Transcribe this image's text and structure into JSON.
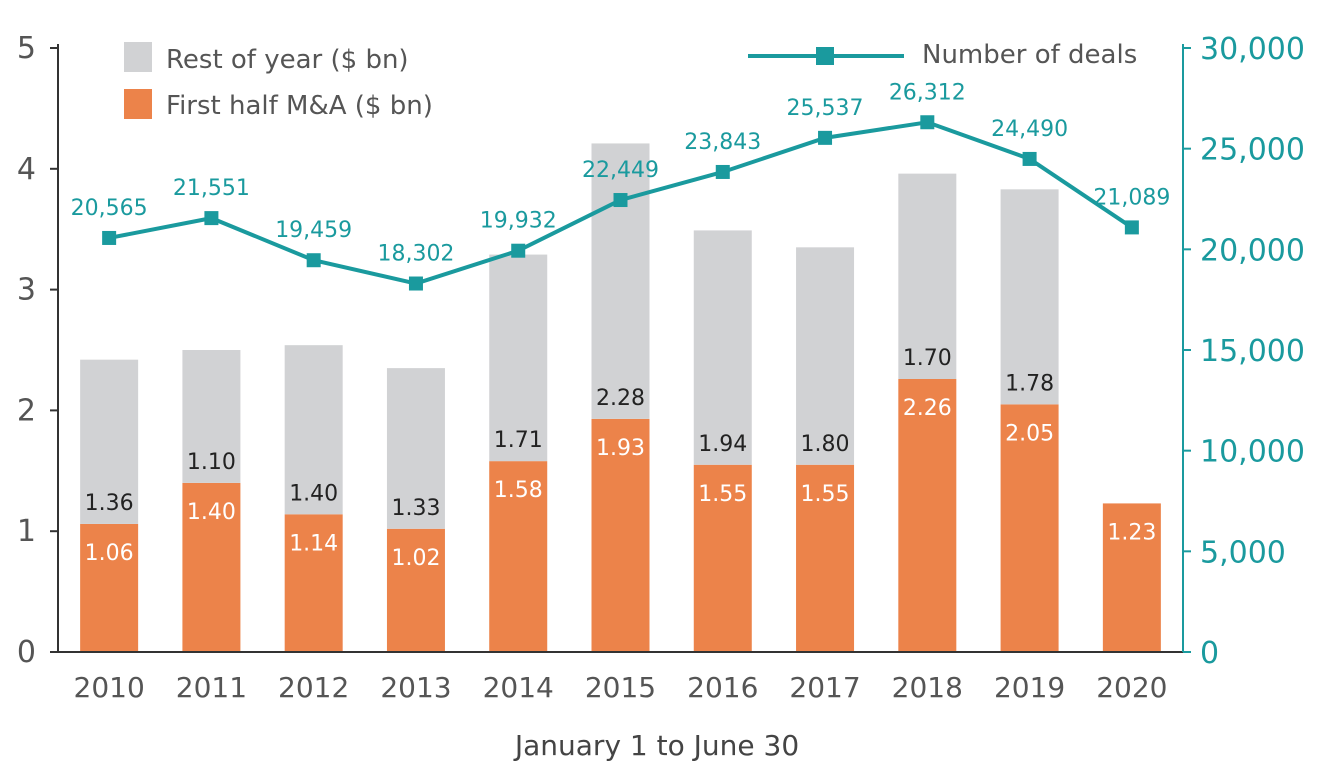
{
  "chart_data": {
    "type": "bar",
    "stacked": true,
    "categories": [
      "2010",
      "2011",
      "2012",
      "2013",
      "2014",
      "2015",
      "2016",
      "2017",
      "2018",
      "2019",
      "2020"
    ],
    "series": [
      {
        "name": "First half M&A ($ bn)",
        "color": "#ec834a",
        "values": [
          1.06,
          1.4,
          1.14,
          1.02,
          1.58,
          1.93,
          1.55,
          1.55,
          2.26,
          2.05,
          1.23
        ],
        "labels": [
          "1.06",
          "1.40",
          "1.14",
          "1.02",
          "1.58",
          "1.93",
          "1.55",
          "1.55",
          "2.26",
          "2.05",
          "1.23"
        ]
      },
      {
        "name": "Rest of year ($ bn)",
        "color": "#d1d2d4",
        "values": [
          1.36,
          1.1,
          1.4,
          1.33,
          1.71,
          2.28,
          1.94,
          1.8,
          1.7,
          1.78,
          null
        ],
        "labels": [
          "1.36",
          "1.10",
          "1.40",
          "1.33",
          "1.71",
          "2.28",
          "1.94",
          "1.80",
          "1.70",
          "1.78",
          ""
        ]
      }
    ],
    "line_series": {
      "name": "Number of deals",
      "color": "#1a9a9e",
      "axis": "right",
      "values": [
        20565,
        21551,
        19459,
        18302,
        19932,
        22449,
        23843,
        25537,
        26312,
        24490,
        21089
      ],
      "labels": [
        "20,565",
        "21,551",
        "19,459",
        "18,302",
        "19,932",
        "22,449",
        "23,843",
        "25,537",
        "26,312",
        "24,490",
        "21,089"
      ]
    },
    "y_left": {
      "ylim": [
        0,
        5
      ],
      "ticks": [
        "0",
        "1",
        "2",
        "3",
        "4",
        "5"
      ]
    },
    "y_right": {
      "ylim": [
        0,
        30000
      ],
      "ticks": [
        "0",
        "5,000",
        "10,000",
        "15,000",
        "20,000",
        "25,000",
        "30,000"
      ]
    },
    "xlabel": "January 1 to June 30",
    "grid": false,
    "legend_placement": "top"
  },
  "legend": {
    "rest": "Rest of year ($ bn)",
    "first": "First half M&A ($ bn)",
    "deals": "Number of deals"
  }
}
